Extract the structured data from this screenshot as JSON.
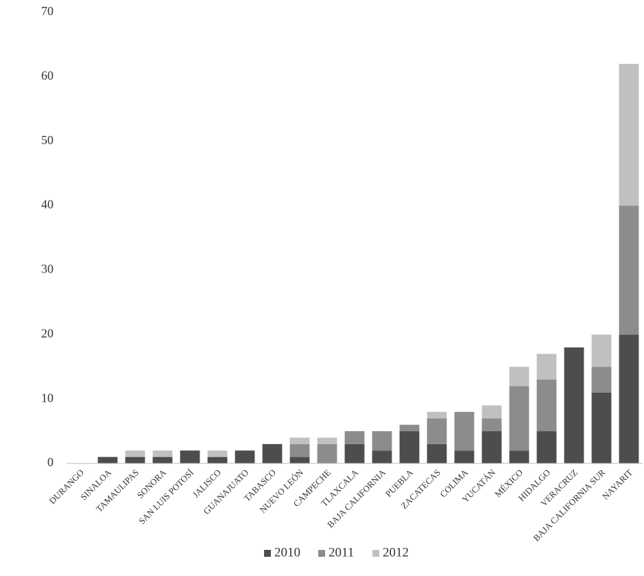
{
  "chart_data": {
    "type": "stacked_bar",
    "categories": [
      "DURANGO",
      "SINALOA",
      "TAMAULIPAS",
      "SONORA",
      "SAN LUIS POTOSÍ",
      "JALISCO",
      "GUANAJUATO",
      "TABASCO",
      "NUEVO LEÓN",
      "CAMPECHE",
      "TLAXCALA",
      "BAJA CALIFORNIA",
      "PUEBLA",
      "ZACATECAS",
      "COLIMA",
      "YUCATÁN",
      "MÉXICO",
      "HIDALGO",
      "VERACRUZ",
      "BAJA CALIFORNIA SUR",
      "NAYARIT"
    ],
    "series": [
      {
        "name": "2010",
        "color": "#4d4d4d",
        "values": [
          0,
          1,
          1,
          1,
          2,
          1,
          2,
          3,
          1,
          0,
          3,
          2,
          5,
          3,
          2,
          5,
          2,
          5,
          18,
          11,
          20
        ]
      },
      {
        "name": "2011",
        "color": "#8c8c8c",
        "values": [
          0,
          0,
          0,
          0,
          0,
          0,
          0,
          0,
          2,
          3,
          2,
          3,
          1,
          4,
          6,
          2,
          10,
          8,
          0,
          4,
          20
        ]
      },
      {
        "name": "2012",
        "color": "#c0c0c0",
        "values": [
          0,
          0,
          1,
          1,
          0,
          1,
          0,
          0,
          1,
          1,
          0,
          0,
          0,
          1,
          0,
          2,
          3,
          4,
          0,
          5,
          22
        ]
      }
    ],
    "ylim": [
      0,
      70
    ],
    "yticks": [
      0,
      10,
      20,
      30,
      40,
      50,
      60,
      70
    ],
    "grid": false,
    "legend": "bottom"
  }
}
